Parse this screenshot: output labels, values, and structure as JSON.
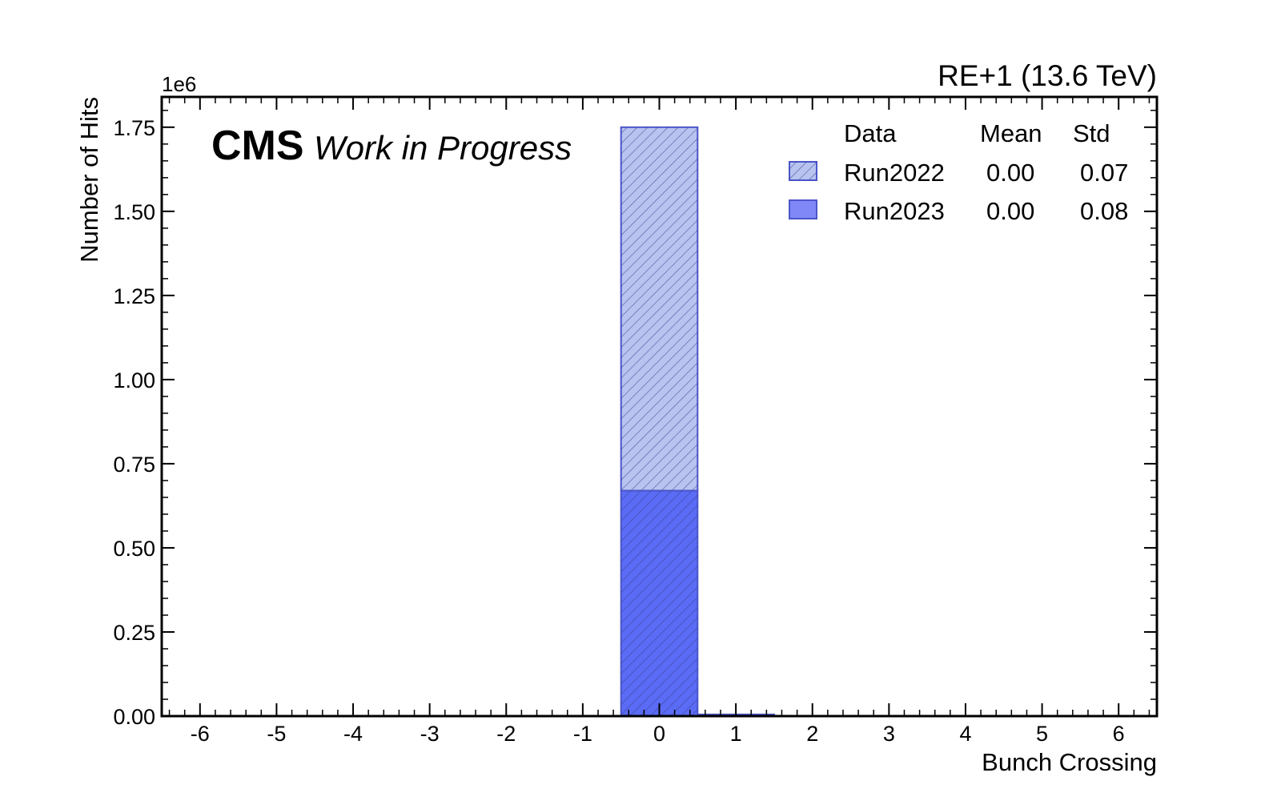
{
  "chart_data": {
    "type": "bar",
    "title": "RE+1 (13.6 TeV)",
    "brand": "CMS",
    "status": "Work in Progress",
    "xlabel": "Bunch Crossing",
    "ylabel": "Number of Hits",
    "y_multiplier": "1e6",
    "xlim": [
      -6.5,
      6.5
    ],
    "ylim": [
      0,
      1.84
    ],
    "x_ticks": [
      "-6",
      "-5",
      "-4",
      "-3",
      "-2",
      "-1",
      "0",
      "1",
      "2",
      "3",
      "4",
      "5",
      "6"
    ],
    "y_ticks": [
      "0.00",
      "0.25",
      "0.50",
      "0.75",
      "1.00",
      "1.25",
      "1.50",
      "1.75"
    ],
    "bins": [
      -6,
      -5,
      -4,
      -3,
      -2,
      -1,
      0,
      1,
      2,
      3,
      4,
      5,
      6
    ],
    "stacked": true,
    "series": [
      {
        "name": "Run2023",
        "mean": "0.00",
        "std": "0.08",
        "color": "#5a6bf5",
        "hatched": true,
        "values": [
          0,
          0,
          0,
          0,
          0,
          0,
          0.67,
          0.003,
          0,
          0,
          0,
          0,
          0
        ]
      },
      {
        "name": "Run2022",
        "mean": "0.00",
        "std": "0.07",
        "color": "#b8c3f0",
        "hatched": true,
        "values": [
          0,
          0,
          0,
          0,
          0,
          0,
          1.08,
          0.002,
          0,
          0,
          0,
          0,
          0
        ]
      }
    ],
    "legend": {
      "position": "top-right",
      "headers": [
        "Data",
        "Mean",
        "Std"
      ],
      "rows": [
        {
          "name": "Run2022",
          "mean": "0.00",
          "std": "0.07",
          "swatch_color": "#b8c3f0",
          "hatched": true
        },
        {
          "name": "Run2023",
          "mean": "0.00",
          "std": "0.08",
          "swatch_color": "#8088f8",
          "hatched": false
        }
      ]
    },
    "grid": false
  }
}
